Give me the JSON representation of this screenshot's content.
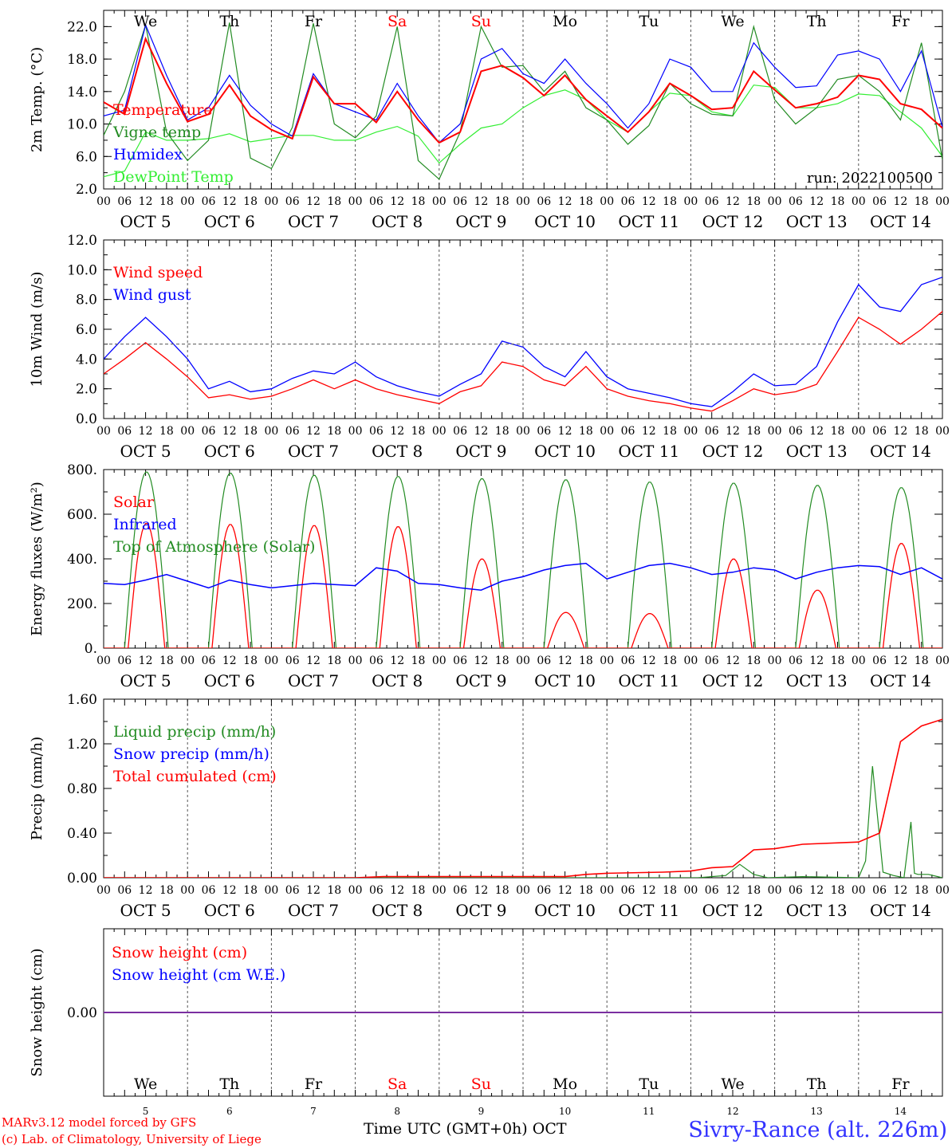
{
  "days": [
    "We",
    "Th",
    "Fr",
    "Sa",
    "Su",
    "Mo",
    "Tu",
    "We",
    "Th",
    "Fr"
  ],
  "day_colors": [
    "#000000",
    "#000000",
    "#000000",
    "#ff0000",
    "#ff0000",
    "#000000",
    "#000000",
    "#000000",
    "#000000",
    "#000000"
  ],
  "date_labels": [
    "OCT  5",
    "OCT  6",
    "OCT  7",
    "OCT  8",
    "OCT  9",
    "OCT 10",
    "OCT 11",
    "OCT 12",
    "OCT 13",
    "OCT 14"
  ],
  "hour_labels": [
    "00",
    "06",
    "12",
    "18"
  ],
  "day_numbers": [
    "5",
    "6",
    "7",
    "8",
    "9",
    "10",
    "11",
    "12",
    "13",
    "14"
  ],
  "run_label": "run: 2022100500",
  "footer": {
    "model": "MARv3.12 model forced by GFS",
    "lab": "(c) Lab. of Climatology, University of Liege",
    "xlabel": "Time UTC (GMT+0h)",
    "month": "OCT",
    "station": "Sivry-Rance (alt. 226m)"
  },
  "chart_data": [
    {
      "type": "line",
      "ylabel": "2m Temp. (°C)",
      "ylim": [
        2.0,
        24.0
      ],
      "yticks": [
        "2.0",
        "6.0",
        "10.0",
        "14.0",
        "18.0",
        "22.0"
      ],
      "ytick_values": [
        2,
        6,
        10,
        14,
        18,
        22
      ],
      "legend": [
        "Temperature",
        "Vigne temp",
        "Humidex",
        "DewPoint Temp"
      ],
      "x": [
        0,
        6,
        12,
        18,
        24,
        30,
        36,
        42,
        48,
        54,
        60,
        66,
        72,
        78,
        84,
        90,
        96,
        102,
        108,
        114,
        120,
        126,
        132,
        138,
        144,
        150,
        156,
        162,
        168,
        174,
        180,
        186,
        192,
        198,
        204,
        210,
        216,
        222,
        228,
        234,
        240
      ],
      "series": [
        {
          "name": "Temperature",
          "color": "#ff0000",
          "values": [
            12.7,
            11.2,
            20.5,
            15.0,
            10.3,
            11.2,
            14.8,
            11.0,
            9.3,
            8.2,
            15.8,
            12.5,
            12.5,
            10.2,
            14.0,
            10.5,
            7.7,
            9.0,
            16.5,
            17.2,
            15.7,
            13.5,
            16.0,
            13.0,
            11.0,
            9.0,
            11.5,
            15.0,
            13.5,
            11.8,
            12.0,
            16.5,
            14.2,
            12.0,
            12.5,
            13.3,
            16.0,
            15.5,
            12.5,
            11.8,
            9.5
          ]
        },
        {
          "name": "Vigne temp",
          "color": "#228b22",
          "values": [
            8.6,
            14.0,
            22.2,
            9.0,
            5.5,
            8.0,
            22.5,
            5.8,
            4.5,
            9.6,
            22.4,
            10.0,
            8.3,
            11.0,
            22.0,
            5.5,
            3.2,
            9.0,
            22.0,
            17.0,
            17.2,
            14.0,
            16.5,
            12.0,
            10.5,
            7.5,
            9.8,
            15.0,
            12.5,
            11.2,
            11.0,
            22.0,
            13.0,
            10.0,
            12.0,
            15.5,
            16.0,
            14.0,
            10.5,
            20.0,
            5.6
          ]
        },
        {
          "name": "Humidex",
          "color": "#0000ff",
          "values": [
            11.0,
            11.7,
            22.2,
            16.0,
            10.5,
            12.0,
            16.0,
            12.3,
            10.0,
            8.5,
            16.2,
            12.5,
            11.5,
            10.5,
            15.0,
            11.0,
            7.7,
            10.0,
            18.0,
            19.3,
            16.2,
            15.0,
            18.0,
            15.0,
            12.5,
            9.5,
            12.5,
            18.0,
            17.0,
            14.0,
            14.0,
            20.0,
            17.0,
            14.5,
            14.7,
            18.5,
            19.0,
            18.0,
            14.0,
            19.0,
            9.6
          ]
        },
        {
          "name": "DewPoint Temp",
          "color": "#33ee33",
          "values": [
            3.5,
            4.2,
            9.0,
            8.0,
            8.0,
            8.2,
            8.8,
            7.8,
            8.2,
            8.6,
            8.6,
            8.0,
            8.0,
            9.0,
            9.7,
            8.5,
            5.2,
            7.5,
            9.5,
            10.0,
            12.0,
            13.5,
            14.2,
            13.0,
            10.5,
            9.0,
            11.5,
            13.8,
            13.5,
            11.5,
            11.0,
            14.8,
            14.5,
            12.0,
            12.0,
            12.5,
            13.7,
            13.5,
            11.5,
            9.5,
            6.0
          ]
        }
      ]
    },
    {
      "type": "line",
      "ylabel": "10m Wind (m/s)",
      "ylim": [
        0.0,
        12.0
      ],
      "yticks": [
        "0.0",
        "2.0",
        "4.0",
        "6.0",
        "8.0",
        "10.0",
        "12.0"
      ],
      "ytick_values": [
        0,
        2,
        4,
        6,
        8,
        10,
        12
      ],
      "hline": 5.0,
      "legend": [
        "Wind speed",
        "Wind gust"
      ],
      "x": [
        0,
        6,
        12,
        18,
        24,
        30,
        36,
        42,
        48,
        54,
        60,
        66,
        72,
        78,
        84,
        90,
        96,
        102,
        108,
        114,
        120,
        126,
        132,
        138,
        144,
        150,
        156,
        162,
        168,
        174,
        180,
        186,
        192,
        198,
        204,
        210,
        216,
        222,
        228,
        234,
        240
      ],
      "series": [
        {
          "name": "Wind speed",
          "color": "#ff0000",
          "values": [
            3.0,
            4.0,
            5.1,
            4.0,
            2.8,
            1.4,
            1.6,
            1.3,
            1.5,
            2.0,
            2.6,
            2.0,
            2.6,
            2.0,
            1.6,
            1.3,
            1.0,
            1.8,
            2.2,
            3.8,
            3.5,
            2.6,
            2.2,
            3.5,
            2.0,
            1.5,
            1.2,
            1.0,
            0.7,
            0.5,
            1.2,
            2.0,
            1.6,
            1.8,
            2.3,
            4.5,
            6.8,
            6.0,
            5.0,
            6.0,
            7.2
          ]
        },
        {
          "name": "Wind gust",
          "color": "#0000ff",
          "values": [
            4.0,
            5.5,
            6.8,
            5.5,
            4.0,
            2.0,
            2.5,
            1.8,
            2.0,
            2.7,
            3.2,
            3.0,
            3.8,
            2.8,
            2.2,
            1.8,
            1.5,
            2.3,
            3.0,
            5.2,
            4.8,
            3.5,
            2.8,
            4.5,
            2.8,
            2.0,
            1.7,
            1.4,
            1.0,
            0.8,
            1.8,
            3.0,
            2.2,
            2.3,
            3.5,
            6.5,
            9.0,
            7.5,
            7.2,
            9.0,
            9.5
          ]
        }
      ]
    },
    {
      "type": "line",
      "ylabel": "Energy fluxes (W/m²)",
      "ylim": [
        0,
        800
      ],
      "yticks": [
        "0.",
        "200.",
        "400.",
        "600.",
        "800."
      ],
      "ytick_values": [
        0,
        200,
        400,
        600,
        800
      ],
      "legend": [
        "Solar",
        "Infrared",
        "Top of Atmosphere (Solar)"
      ],
      "toa_peaks": [
        790,
        785,
        775,
        770,
        760,
        755,
        745,
        740,
        730,
        720
      ],
      "solar_peaks": [
        560,
        555,
        550,
        545,
        400,
        160,
        155,
        400,
        260,
        470
      ],
      "series": [
        {
          "name": "Infrared",
          "color": "#0000ff",
          "x": [
            0,
            6,
            12,
            18,
            24,
            30,
            36,
            42,
            48,
            54,
            60,
            66,
            72,
            78,
            84,
            90,
            96,
            102,
            108,
            114,
            120,
            126,
            132,
            138,
            144,
            150,
            156,
            162,
            168,
            174,
            180,
            186,
            192,
            198,
            204,
            210,
            216,
            222,
            228,
            234,
            240
          ],
          "values": [
            290,
            285,
            305,
            330,
            300,
            270,
            305,
            285,
            270,
            280,
            290,
            285,
            280,
            360,
            345,
            290,
            285,
            270,
            260,
            300,
            320,
            350,
            370,
            380,
            310,
            340,
            370,
            380,
            360,
            330,
            340,
            360,
            350,
            310,
            340,
            360,
            370,
            365,
            330,
            360,
            310
          ]
        }
      ]
    },
    {
      "type": "line",
      "ylabel": "Precip (mm/h)",
      "ylim": [
        0.0,
        1.6
      ],
      "yticks": [
        "0.00",
        "0.40",
        "0.80",
        "1.20",
        "1.60"
      ],
      "ytick_values": [
        0,
        0.4,
        0.8,
        1.2,
        1.6
      ],
      "legend": [
        "Liquid precip (mm/h)",
        "Snow precip (mm/h)",
        "Total cumulated (cm)"
      ],
      "series": [
        {
          "name": "Total cumulated (cm)",
          "color": "#ff0000",
          "x": [
            0,
            72,
            80,
            120,
            132,
            138,
            144,
            160,
            168,
            174,
            180,
            186,
            192,
            200,
            216,
            222,
            228,
            234,
            240
          ],
          "values": [
            0,
            0,
            0.01,
            0.01,
            0.01,
            0.03,
            0.04,
            0.05,
            0.06,
            0.09,
            0.1,
            0.25,
            0.26,
            0.3,
            0.32,
            0.4,
            1.22,
            1.36,
            1.42
          ]
        },
        {
          "name": "Liquid precip (mm/h)",
          "color": "#228b22",
          "x": [
            0,
            170,
            178,
            182,
            186,
            190,
            200,
            216,
            218,
            220,
            223,
            226,
            229,
            231,
            232,
            233,
            236,
            240
          ],
          "values": [
            0,
            0,
            0.02,
            0.12,
            0.03,
            0,
            0.01,
            0,
            0.15,
            1.0,
            0.05,
            0.02,
            0,
            0.5,
            0.04,
            0.03,
            0.03,
            0
          ]
        }
      ]
    },
    {
      "type": "line",
      "ylabel": "Snow height (cm)",
      "ytick_values": [
        0.0
      ],
      "yticks": [
        "0.00"
      ],
      "legend": [
        "Snow height (cm)",
        "Snow height (cm W.E.)"
      ],
      "series": [
        {
          "name": "Snow height (cm)",
          "color": "#ff0000",
          "values": [
            0.0,
            0.0
          ]
        },
        {
          "name": "Snow height (cm W.E.)",
          "color": "#0000ff",
          "values": [
            0.0,
            0.0
          ]
        }
      ]
    }
  ]
}
